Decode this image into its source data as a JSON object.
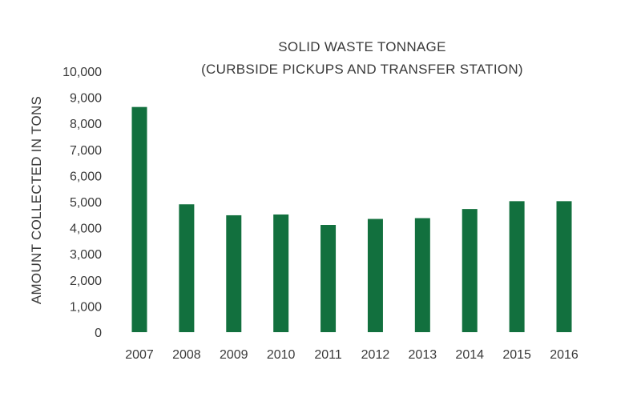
{
  "chart_data": {
    "type": "bar",
    "title": "SOLID WASTE TONNAGE",
    "subtitle": "(CURBSIDE PICKUPS AND TRANSFER STATION)",
    "xlabel": "",
    "ylabel": "AMOUNT COLLECTED IN TONS",
    "categories": [
      "2007",
      "2008",
      "2009",
      "2010",
      "2011",
      "2012",
      "2013",
      "2014",
      "2015",
      "2016"
    ],
    "values": [
      8630,
      4900,
      4480,
      4510,
      4110,
      4340,
      4370,
      4720,
      5020,
      5020
    ],
    "ylim": [
      0,
      10000
    ],
    "yticks": [
      0,
      1000,
      2000,
      3000,
      4000,
      5000,
      6000,
      7000,
      8000,
      9000,
      10000
    ],
    "ytick_labels": [
      "0",
      "1,000",
      "2,000",
      "3,000",
      "4,000",
      "5,000",
      "6,000",
      "7,000",
      "8,000",
      "9,000",
      "10,000"
    ],
    "grid": false,
    "legend": "none",
    "bar_color": "#12703e"
  }
}
